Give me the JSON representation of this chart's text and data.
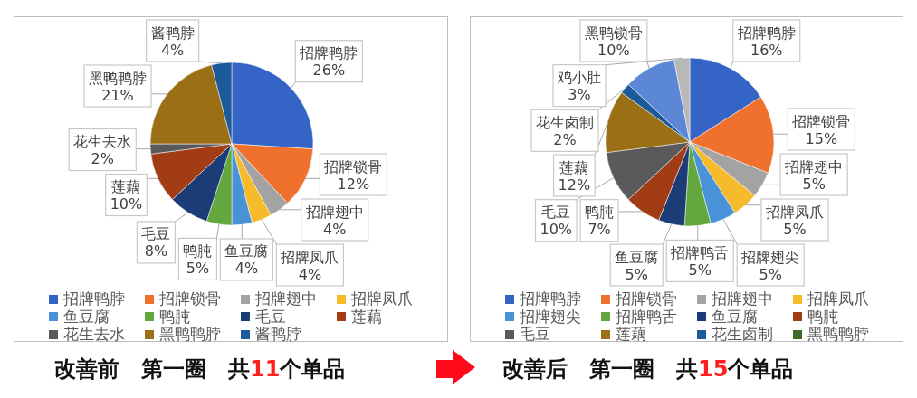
{
  "chart_data": [
    {
      "type": "pie",
      "title": "改善前　第一圈　共11个单品",
      "categories": [
        "招牌鸭脖",
        "招牌锁骨",
        "招牌翅中",
        "招牌凤爪",
        "鱼豆腐",
        "鸭肫",
        "毛豆",
        "莲藕",
        "花生去水",
        "黑鸭鸭脖",
        "酱鸭脖"
      ],
      "values": [
        26,
        12,
        4,
        4,
        4,
        5,
        8,
        10,
        2,
        21,
        4
      ],
      "value_labels": [
        "26%",
        "12%",
        "4%",
        "4%",
        "4%",
        "5%",
        "8%",
        "10%",
        "2%",
        "21%",
        "4%"
      ],
      "colors": [
        "#3465c6",
        "#f0702e",
        "#a3a3a3",
        "#f5bb2a",
        "#4a92d8",
        "#62a83f",
        "#1c3c78",
        "#a23c14",
        "#5a5a5a",
        "#9a6f16",
        "#1d5a99"
      ],
      "legend": "bottom"
    },
    {
      "type": "pie",
      "title": "改善后　第一圈　共15个单品",
      "categories": [
        "招牌鸭脖",
        "招牌锁骨",
        "招牌翅中",
        "招牌凤爪",
        "招牌翅尖",
        "招牌鸭舌",
        "鱼豆腐",
        "鸭肫",
        "毛豆",
        "莲藕",
        "花生卤制",
        "黑鸭鸭脖",
        "黑鸭锁骨",
        "鸡小肚"
      ],
      "values": [
        16,
        15,
        5,
        5,
        5,
        5,
        5,
        7,
        10,
        12,
        2,
        null,
        10,
        3
      ],
      "value_labels": [
        "16%",
        "15%",
        "5%",
        "5%",
        "5%",
        "5%",
        "5%",
        "7%",
        "10%",
        "12%",
        "2%",
        null,
        "10%",
        "3%"
      ],
      "colors": [
        "#3465c6",
        "#f0702e",
        "#a3a3a3",
        "#f5bb2a",
        "#4a92d8",
        "#62a83f",
        "#1c3c78",
        "#a23c14",
        "#5a5a5a",
        "#9a6f16",
        "#1d5a99",
        "#3d6b25",
        "#5b87d6",
        "#b8b8b8"
      ],
      "legend": "bottom"
    }
  ]
}
